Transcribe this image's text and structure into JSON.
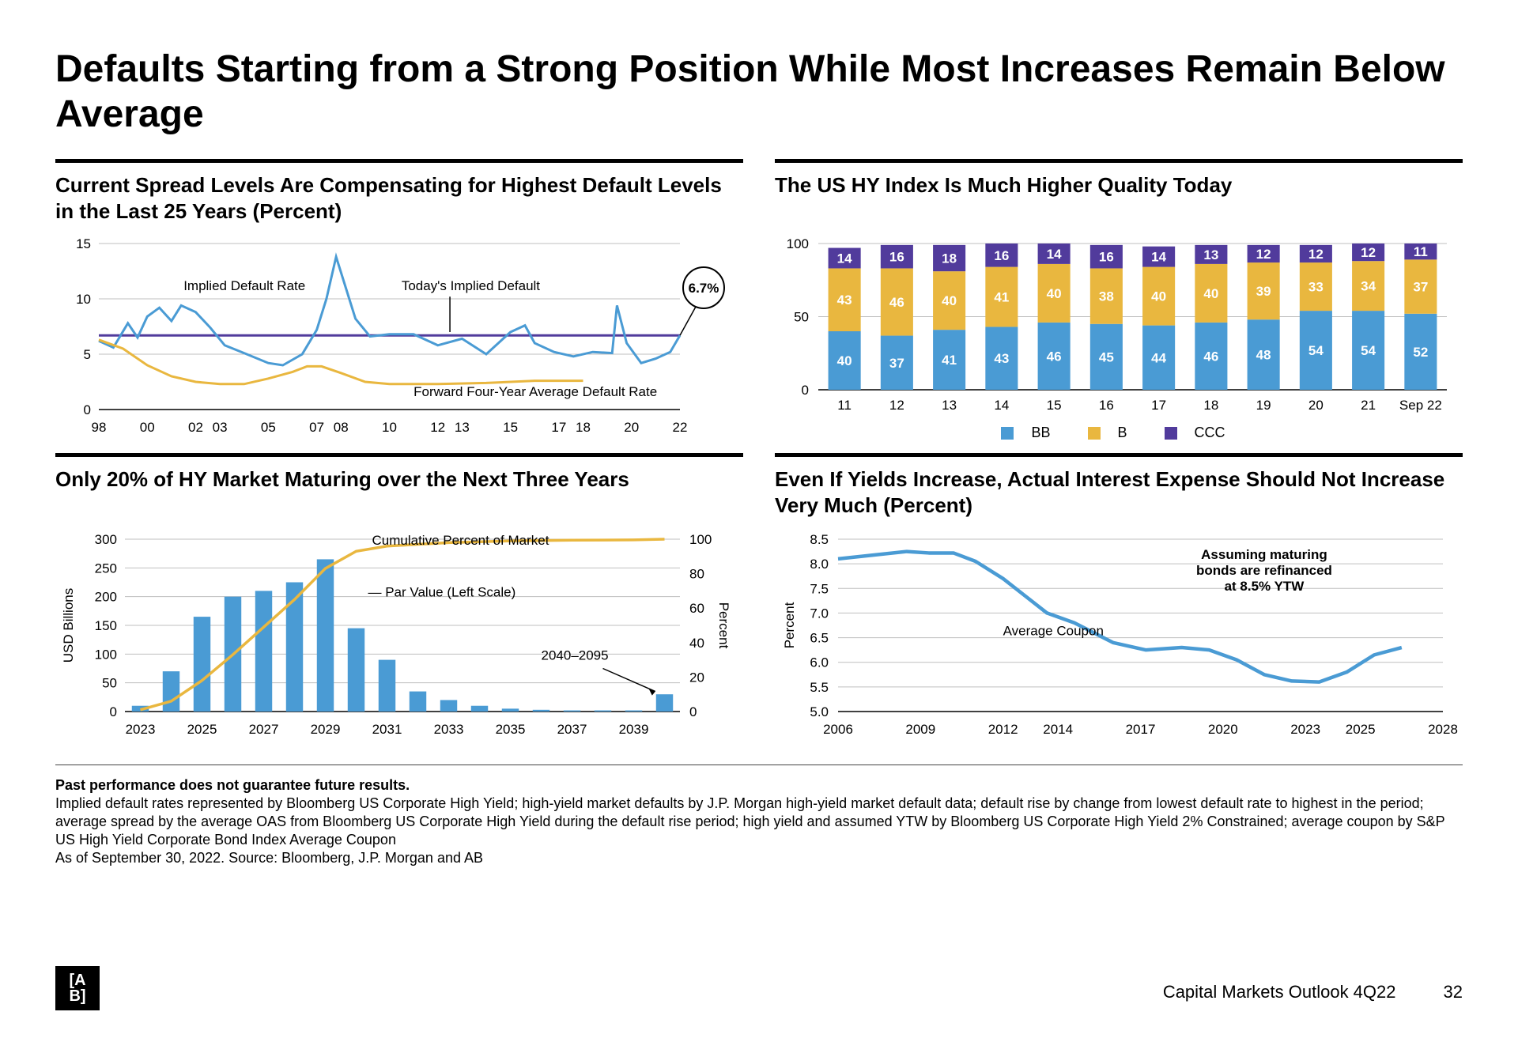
{
  "page": {
    "title": "Defaults Starting from a Strong Position While Most Increases Remain Below Average",
    "footer_doc": "Capital Markets Outlook 4Q22",
    "page_number": "32",
    "logo": "[A/B]"
  },
  "colors": {
    "blue": "#4a9bd4",
    "yellow": "#e9b73f",
    "purple": "#513b9c",
    "grid": "#bfbfbf",
    "axis": "#000000",
    "text": "#000000"
  },
  "chart1": {
    "title": "Current Spread Levels Are Compensating for Highest Default Levels in the Last 25 Years (Percent)",
    "ylim": [
      0,
      15
    ],
    "ytick_step": 5,
    "x_labels": [
      "98",
      "00",
      "02",
      "03",
      "05",
      "07",
      "08",
      "10",
      "12",
      "13",
      "15",
      "17",
      "18",
      "20",
      "22"
    ],
    "x_positions": [
      0,
      2,
      4,
      5,
      7,
      9,
      10,
      12,
      14,
      15,
      17,
      19,
      20,
      22,
      24
    ],
    "x_range": [
      0,
      24
    ],
    "constant_line": 6.7,
    "constant_color": "#513b9c",
    "callout": "6.7%",
    "labels": {
      "implied": "Implied Default Rate",
      "today": "Today's Implied Default",
      "fwd": "Forward Four-Year Average Default Rate"
    },
    "series_implied": {
      "color": "#4a9bd4",
      "points": [
        [
          0,
          6.2
        ],
        [
          0.6,
          5.6
        ],
        [
          1.2,
          7.8
        ],
        [
          1.6,
          6.5
        ],
        [
          2,
          8.4
        ],
        [
          2.5,
          9.2
        ],
        [
          3,
          8.0
        ],
        [
          3.4,
          9.4
        ],
        [
          4,
          8.8
        ],
        [
          4.6,
          7.4
        ],
        [
          5.2,
          5.8
        ],
        [
          6,
          5.1
        ],
        [
          7,
          4.2
        ],
        [
          7.6,
          4.0
        ],
        [
          8.4,
          5.0
        ],
        [
          9,
          7.2
        ],
        [
          9.4,
          10.0
        ],
        [
          9.8,
          13.8
        ],
        [
          10.2,
          11.0
        ],
        [
          10.6,
          8.2
        ],
        [
          11.2,
          6.6
        ],
        [
          12,
          6.8
        ],
        [
          13,
          6.8
        ],
        [
          14,
          5.8
        ],
        [
          15,
          6.4
        ],
        [
          16,
          5.0
        ],
        [
          17,
          7.0
        ],
        [
          17.6,
          7.6
        ],
        [
          18,
          6.0
        ],
        [
          18.8,
          5.2
        ],
        [
          19.6,
          4.8
        ],
        [
          20.4,
          5.2
        ],
        [
          21.2,
          5.1
        ],
        [
          21.4,
          9.4
        ],
        [
          21.8,
          6.0
        ],
        [
          22.4,
          4.2
        ],
        [
          23,
          4.6
        ],
        [
          23.6,
          5.2
        ],
        [
          24,
          6.7
        ]
      ]
    },
    "series_fwd": {
      "color": "#e9b73f",
      "points": [
        [
          0,
          6.3
        ],
        [
          1,
          5.5
        ],
        [
          2,
          4.0
        ],
        [
          3,
          3.0
        ],
        [
          4,
          2.5
        ],
        [
          5,
          2.3
        ],
        [
          6,
          2.3
        ],
        [
          7,
          2.8
        ],
        [
          8,
          3.4
        ],
        [
          8.6,
          3.9
        ],
        [
          9.2,
          3.9
        ],
        [
          10,
          3.3
        ],
        [
          11,
          2.5
        ],
        [
          12,
          2.3
        ],
        [
          14,
          2.3
        ],
        [
          16,
          2.4
        ],
        [
          18,
          2.6
        ],
        [
          20,
          2.6
        ]
      ]
    }
  },
  "chart2": {
    "title": "The US HY Index Is Much Higher Quality Today",
    "ylim": [
      0,
      100
    ],
    "ytick_step": 50,
    "categories": [
      "11",
      "12",
      "13",
      "14",
      "15",
      "16",
      "17",
      "18",
      "19",
      "20",
      "21",
      "Sep 22"
    ],
    "series": {
      "BB": {
        "color": "#4a9bd4",
        "values": [
          40,
          37,
          41,
          43,
          46,
          45,
          44,
          46,
          48,
          54,
          54,
          52
        ]
      },
      "B": {
        "color": "#e9b73f",
        "values": [
          43,
          46,
          40,
          41,
          40,
          38,
          40,
          40,
          39,
          33,
          34,
          37
        ]
      },
      "CCC": {
        "color": "#513b9c",
        "values": [
          14,
          16,
          18,
          16,
          14,
          16,
          14,
          13,
          12,
          12,
          12,
          11
        ]
      }
    },
    "legend": [
      "BB",
      "B",
      "CCC"
    ]
  },
  "chart3": {
    "title": "Only 20% of HY Market Maturing over the Next Three Years",
    "ylabel": "USD Billions",
    "y2label": "Percent",
    "ylim": [
      0,
      300
    ],
    "ytick_step": 50,
    "y2lim": [
      0,
      100
    ],
    "y2tick_step": 20,
    "categories": [
      "2023",
      "2025",
      "2027",
      "2029",
      "2031",
      "2033",
      "2035",
      "2037",
      "2039"
    ],
    "bars": {
      "color": "#4a9bd4",
      "x": [
        0,
        1,
        2,
        3,
        4,
        5,
        6,
        7,
        8,
        9,
        10,
        11,
        12,
        13,
        14,
        15,
        16,
        17
      ],
      "v": [
        10,
        70,
        165,
        200,
        210,
        225,
        265,
        145,
        90,
        35,
        20,
        10,
        5,
        3,
        2,
        2,
        2,
        30
      ]
    },
    "cumline": {
      "color": "#e9b73f",
      "points": [
        [
          0,
          1
        ],
        [
          1,
          6
        ],
        [
          2,
          18
        ],
        [
          3,
          33
        ],
        [
          4,
          49
        ],
        [
          5,
          65
        ],
        [
          6,
          83
        ],
        [
          7,
          93
        ],
        [
          8,
          96
        ],
        [
          9,
          97
        ],
        [
          10,
          98
        ],
        [
          11,
          98.5
        ],
        [
          12,
          99
        ],
        [
          13,
          99.2
        ],
        [
          14,
          99.4
        ],
        [
          15,
          99.5
        ],
        [
          16,
          99.6
        ],
        [
          17,
          100
        ]
      ]
    },
    "labels": {
      "cum": "Cumulative Percent of Market",
      "par": "Par Value (Left Scale)",
      "tail": "2040–2095"
    }
  },
  "chart4": {
    "title": "Even If Yields Increase, Actual Interest Expense Should Not Increase Very Much (Percent)",
    "ylabel": "Percent",
    "ylim": [
      5.0,
      8.5
    ],
    "ytick_step": 0.5,
    "x_labels": [
      "2006",
      "2009",
      "2012",
      "2014",
      "2017",
      "2020",
      "2023",
      "2025",
      "2028"
    ],
    "xlim": [
      2006,
      2028
    ],
    "labels": {
      "avg": "Average Coupon",
      "assume": "Assuming maturing bonds are refinanced at 8.5% YTW"
    },
    "line": {
      "color": "#4a9bd4",
      "points": [
        [
          2006,
          8.1
        ],
        [
          2008.5,
          8.25
        ],
        [
          2009.3,
          8.22
        ],
        [
          2010.2,
          8.22
        ],
        [
          2011,
          8.05
        ],
        [
          2012,
          7.7
        ],
        [
          2012.8,
          7.35
        ],
        [
          2013.6,
          7.0
        ],
        [
          2014.6,
          6.8
        ],
        [
          2016,
          6.4
        ],
        [
          2017.2,
          6.25
        ],
        [
          2018.5,
          6.3
        ],
        [
          2019.5,
          6.25
        ],
        [
          2020.5,
          6.05
        ],
        [
          2021.5,
          5.75
        ],
        [
          2022.5,
          5.62
        ],
        [
          2023.5,
          5.6
        ],
        [
          2024.5,
          5.8
        ],
        [
          2025.5,
          6.15
        ],
        [
          2026.5,
          6.3
        ]
      ]
    }
  },
  "disclaimer": {
    "bold": "Past performance does not guarantee future results.",
    "lines": [
      "Implied default rates represented by Bloomberg US Corporate High Yield; high-yield market defaults by J.P. Morgan high-yield market default data; default rise by change from lowest default rate to highest in the period; average spread by the average OAS from Bloomberg US Corporate High Yield during the default rise period; high yield and assumed YTW by Bloomberg US Corporate High Yield 2% Constrained; average coupon by S&P US High Yield Corporate Bond Index Average Coupon",
      "As of September 30, 2022. Source: Bloomberg, J.P. Morgan and AB"
    ]
  }
}
